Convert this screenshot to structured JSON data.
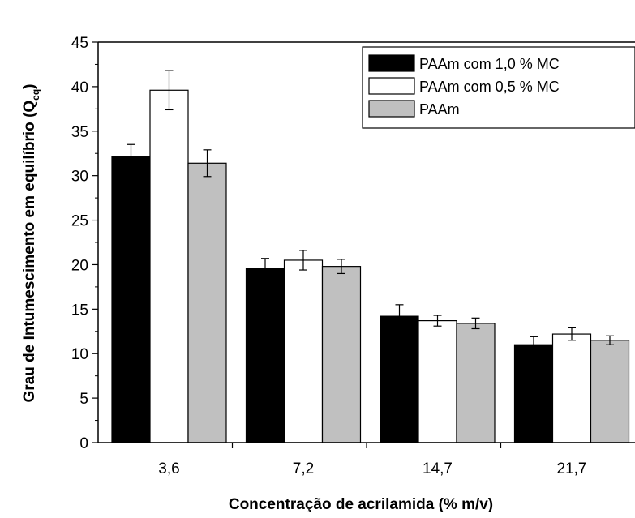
{
  "chart_data": {
    "type": "bar",
    "title": "",
    "xlabel": "Concentração de acrilamida (% m/v)",
    "ylabel_main": "Grau de Intumescimento em equilíbrio (Q",
    "ylabel_sub": "eq",
    "ylabel_close": ")",
    "categories": [
      "3,6",
      "7,2",
      "14,7",
      "21,7"
    ],
    "ylim": [
      0,
      45
    ],
    "yticks": [
      "0",
      "5",
      "10",
      "15",
      "20",
      "25",
      "30",
      "35",
      "40",
      "45"
    ],
    "grid": false,
    "legend_position": "top-right",
    "series": [
      {
        "name": "PAAm com 1,0 % MC",
        "values": [
          32.1,
          19.6,
          14.2,
          11.0
        ],
        "errors": [
          1.4,
          1.1,
          1.3,
          0.9
        ],
        "color": "#000000"
      },
      {
        "name": "PAAm com 0,5 % MC",
        "values": [
          39.6,
          20.5,
          13.7,
          12.2
        ],
        "errors": [
          2.2,
          1.1,
          0.6,
          0.7
        ],
        "color": "#ffffff"
      },
      {
        "name": "PAAm",
        "values": [
          31.4,
          19.8,
          13.4,
          11.5
        ],
        "errors": [
          1.5,
          0.8,
          0.6,
          0.5
        ],
        "color": "#c0c0c0"
      }
    ]
  }
}
